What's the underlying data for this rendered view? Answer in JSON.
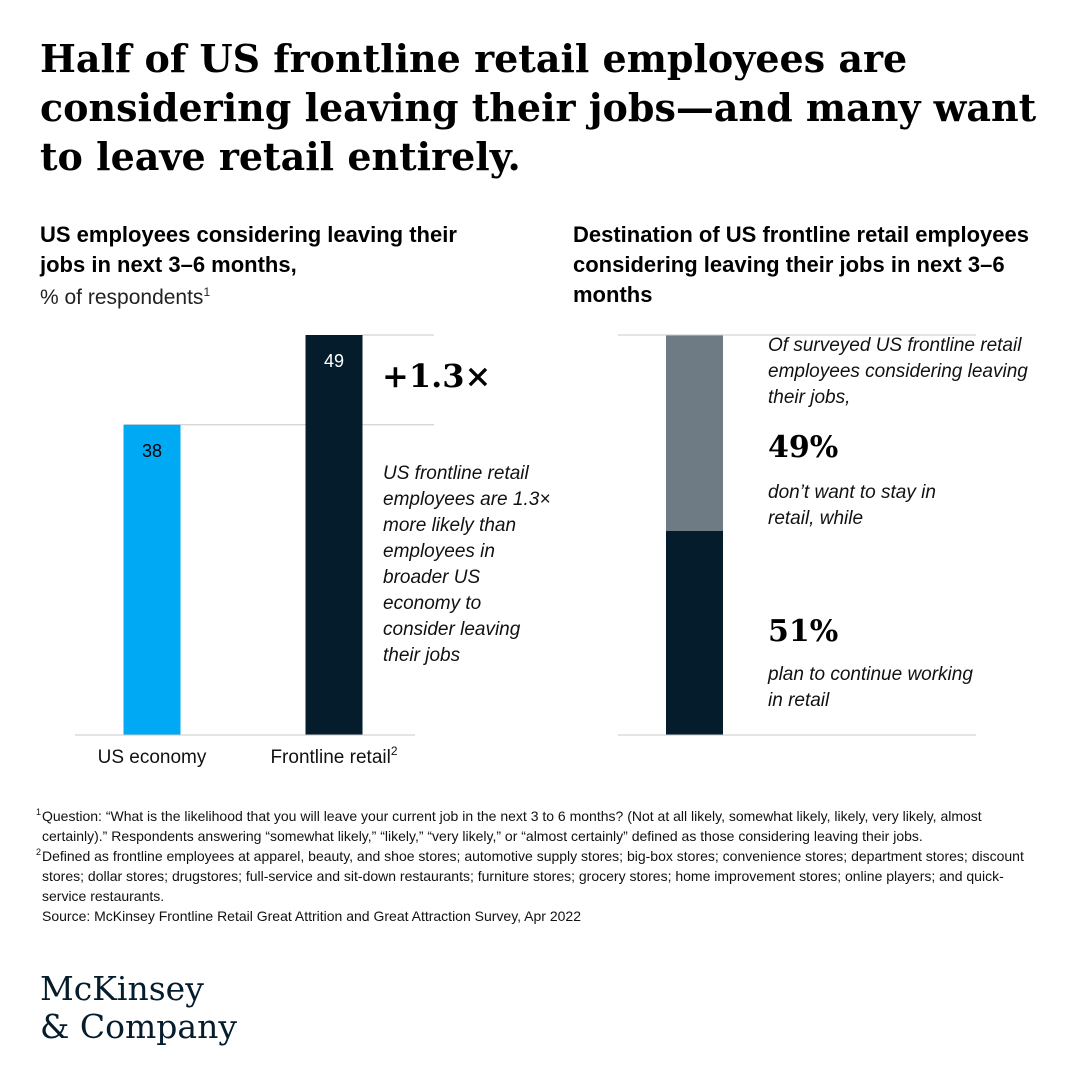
{
  "headline": "Half of US frontline retail employees are considering leaving their jobs—and many want to leave retail entirely.",
  "colors": {
    "us_economy": "#00a9f4",
    "frontline_retail": "#051c2c",
    "leave_retail": "#6e7b84",
    "stay_retail": "#051c2c"
  },
  "chart_data": [
    {
      "type": "bar",
      "title": "US employees considering leaving their jobs in next 3–6 months,",
      "unit_label": "% of respondents",
      "unit_footnote": "1",
      "categories": [
        "US economy",
        "Frontline retail"
      ],
      "category_footnotes": [
        "",
        "2"
      ],
      "values": [
        38,
        49
      ],
      "ylim": [
        0,
        49
      ],
      "multiplier_label": "+1.3×",
      "annotation": "US frontline retail employees are 1.3× more likely than employees in broader US economy to consider leaving their jobs",
      "grid": false
    },
    {
      "type": "bar",
      "stacked": true,
      "title": "Destination of US frontline retail employees considering leaving their jobs in next 3–6 months",
      "intro": "Of surveyed US frontline retail employees considering leaving their jobs,",
      "segments": [
        {
          "value": 49,
          "label": "49%",
          "text": "don’t want to stay in retail, while"
        },
        {
          "value": 51,
          "label": "51%",
          "text": "plan to continue working in retail"
        }
      ],
      "ylim": [
        0,
        100
      ]
    }
  ],
  "footnotes": [
    {
      "marker": "1",
      "text": "Question: “What is the likelihood that you will leave your current job in the next 3 to 6 months? (Not at all likely, somewhat likely, likely, very likely, almost certainly).” Respondents answering “somewhat likely,” “likely,” “very likely,” or “almost certainly” defined as those considering leaving their jobs."
    },
    {
      "marker": "2",
      "text": "Defined as frontline employees at apparel, beauty, and shoe stores; automotive supply stores; big-box stores; convenience stores; department stores; discount stores; dollar stores; drugstores; full-service and sit-down restaurants; furniture stores; grocery stores; home improvement stores; online players; and quick-service restaurants."
    }
  ],
  "source": "Source: McKinsey Frontline Retail Great Attrition and Great Attraction Survey, Apr 2022",
  "logo": {
    "line1": "McKinsey",
    "line2": "& Company"
  }
}
